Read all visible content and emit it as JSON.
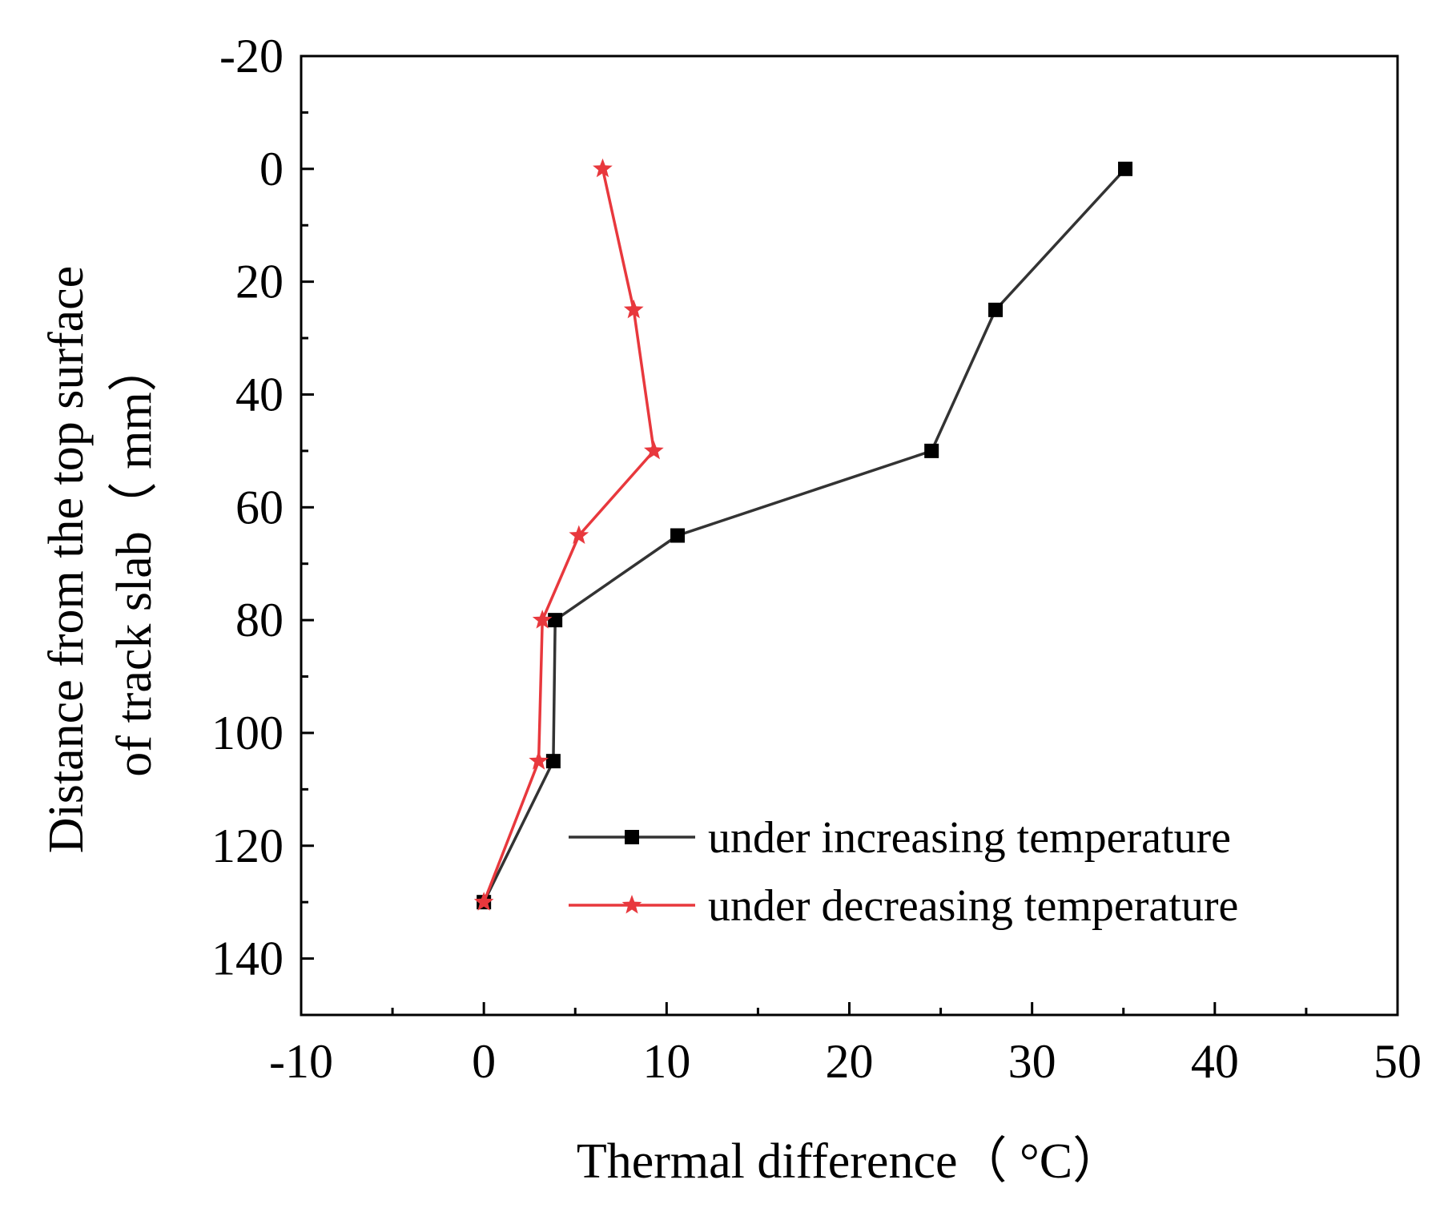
{
  "chart_data": {
    "type": "line",
    "title": "",
    "xlabel": "Thermal difference（ °C）",
    "ylabel_lines": [
      "Distance from the top surface",
      "of track slab（ mm）"
    ],
    "xlim": [
      -10,
      50
    ],
    "ylim": [
      -20,
      150
    ],
    "y_inverted": true,
    "x_ticks": [
      -10,
      0,
      10,
      20,
      30,
      40,
      50
    ],
    "y_ticks": [
      -20,
      0,
      20,
      40,
      60,
      80,
      100,
      120,
      140
    ],
    "grid": false,
    "legend_position": "bottom-right",
    "series": [
      {
        "name": "under increasing temperature",
        "color": "#333333",
        "marker_color": "#000000",
        "marker": "square",
        "points": [
          {
            "x": 35.1,
            "y": 0
          },
          {
            "x": 28.0,
            "y": 25
          },
          {
            "x": 24.5,
            "y": 50
          },
          {
            "x": 10.6,
            "y": 65
          },
          {
            "x": 3.9,
            "y": 80
          },
          {
            "x": 3.8,
            "y": 105
          },
          {
            "x": 0.0,
            "y": 130
          }
        ]
      },
      {
        "name": "under decreasing temperature",
        "color": "#e8383d",
        "marker_color": "#e8383d",
        "marker": "star",
        "points": [
          {
            "x": 6.5,
            "y": 0
          },
          {
            "x": 8.2,
            "y": 25
          },
          {
            "x": 9.3,
            "y": 50
          },
          {
            "x": 5.2,
            "y": 65
          },
          {
            "x": 3.2,
            "y": 80
          },
          {
            "x": 3.0,
            "y": 105
          },
          {
            "x": 0.0,
            "y": 130
          }
        ]
      }
    ]
  }
}
